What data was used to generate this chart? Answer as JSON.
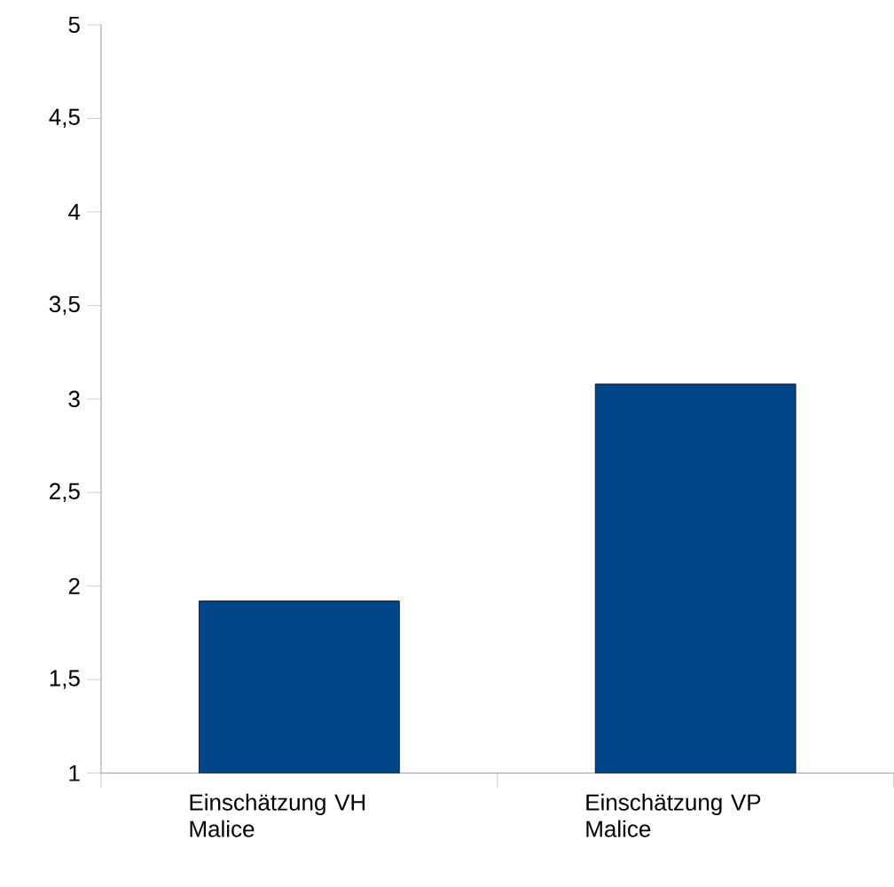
{
  "chart_data": {
    "type": "bar",
    "categories": [
      "Einschätzung VH Malice",
      "Einschätzung VP Malice"
    ],
    "values": [
      1.92,
      3.08
    ],
    "color": "#004586",
    "ylim": [
      1,
      5
    ],
    "yticks": [
      1,
      {
        "value": 1.5,
        "label": "1,5"
      },
      2,
      {
        "value": 2.5,
        "label": "2,5"
      },
      3,
      {
        "value": 3.5,
        "label": "3,5"
      },
      4,
      {
        "value": 4.5,
        "label": "4,5"
      },
      5
    ]
  }
}
